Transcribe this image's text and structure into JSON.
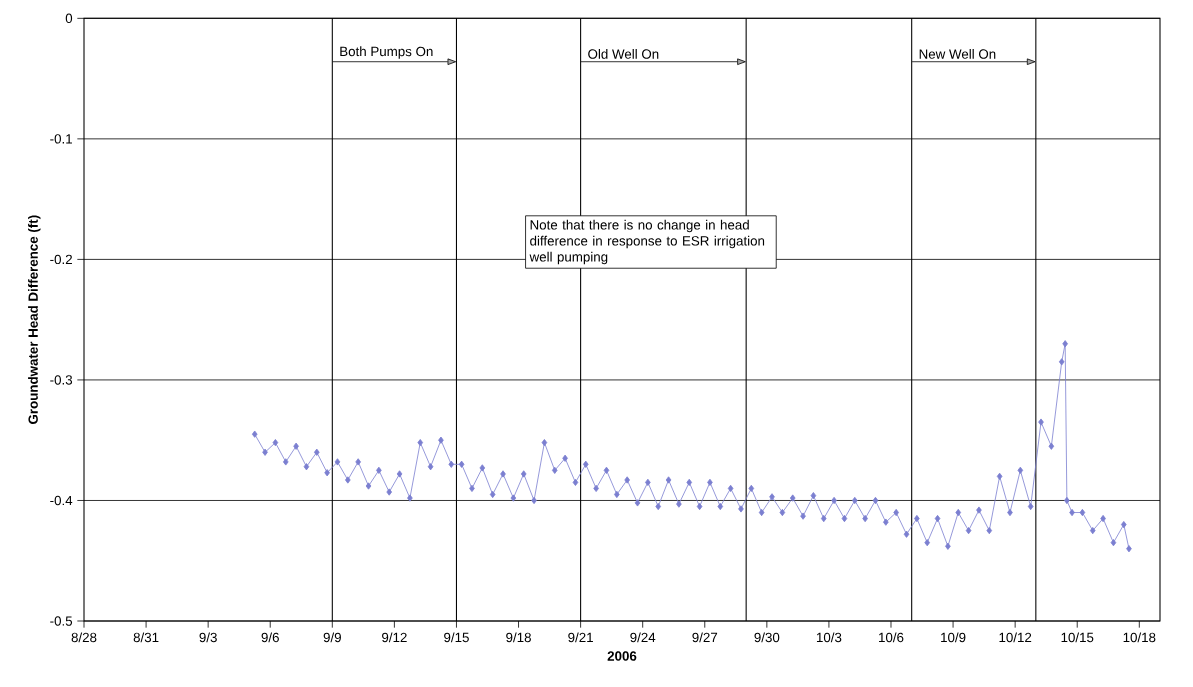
{
  "chart_data": {
    "type": "line",
    "xlabel": "2006",
    "ylabel": "Groundwater Head Difference (ft)",
    "xlim": [
      "2006-08-28",
      "2006-10-19"
    ],
    "ylim": [
      -0.5,
      0
    ],
    "xticks": [
      {
        "value": "2006-08-28",
        "label": "8/28"
      },
      {
        "value": "2006-08-31",
        "label": "8/31"
      },
      {
        "value": "2006-09-03",
        "label": "9/3"
      },
      {
        "value": "2006-09-06",
        "label": "9/6"
      },
      {
        "value": "2006-09-09",
        "label": "9/9"
      },
      {
        "value": "2006-09-12",
        "label": "9/12"
      },
      {
        "value": "2006-09-15",
        "label": "9/15"
      },
      {
        "value": "2006-09-18",
        "label": "9/18"
      },
      {
        "value": "2006-09-21",
        "label": "9/21"
      },
      {
        "value": "2006-09-24",
        "label": "9/24"
      },
      {
        "value": "2006-09-27",
        "label": "9/27"
      },
      {
        "value": "2006-09-30",
        "label": "9/30"
      },
      {
        "value": "2006-10-03",
        "label": "10/3"
      },
      {
        "value": "2006-10-06",
        "label": "10/6"
      },
      {
        "value": "2006-10-09",
        "label": "10/9"
      },
      {
        "value": "2006-10-12",
        "label": "10/12"
      },
      {
        "value": "2006-10-15",
        "label": "10/15"
      },
      {
        "value": "2006-10-18",
        "label": "10/18"
      }
    ],
    "yticks": [
      -0.5,
      -0.4,
      -0.3,
      -0.2,
      -0.1,
      0
    ],
    "grid": "y",
    "marker": "diamond",
    "line_style": "solid",
    "x": [
      "2006-09-05T06:00",
      "2006-09-05T18:00",
      "2006-09-06T06:00",
      "2006-09-06T18:00",
      "2006-09-07T06:00",
      "2006-09-07T18:00",
      "2006-09-08T06:00",
      "2006-09-08T18:00",
      "2006-09-09T06:00",
      "2006-09-09T18:00",
      "2006-09-10T06:00",
      "2006-09-10T18:00",
      "2006-09-11T06:00",
      "2006-09-11T18:00",
      "2006-09-12T06:00",
      "2006-09-12T18:00",
      "2006-09-13T06:00",
      "2006-09-13T18:00",
      "2006-09-14T06:00",
      "2006-09-14T18:00",
      "2006-09-15T06:00",
      "2006-09-15T18:00",
      "2006-09-16T06:00",
      "2006-09-16T18:00",
      "2006-09-17T06:00",
      "2006-09-17T18:00",
      "2006-09-18T06:00",
      "2006-09-18T18:00",
      "2006-09-19T06:00",
      "2006-09-19T18:00",
      "2006-09-20T06:00",
      "2006-09-20T18:00",
      "2006-09-21T06:00",
      "2006-09-21T18:00",
      "2006-09-22T06:00",
      "2006-09-22T18:00",
      "2006-09-23T06:00",
      "2006-09-23T18:00",
      "2006-09-24T06:00",
      "2006-09-24T18:00",
      "2006-09-25T06:00",
      "2006-09-25T18:00",
      "2006-09-26T06:00",
      "2006-09-26T18:00",
      "2006-09-27T06:00",
      "2006-09-27T18:00",
      "2006-09-28T06:00",
      "2006-09-28T18:00",
      "2006-09-29T06:00",
      "2006-09-29T18:00",
      "2006-09-30T06:00",
      "2006-09-30T18:00",
      "2006-10-01T06:00",
      "2006-10-01T18:00",
      "2006-10-02T06:00",
      "2006-10-02T18:00",
      "2006-10-03T06:00",
      "2006-10-03T18:00",
      "2006-10-04T06:00",
      "2006-10-04T18:00",
      "2006-10-05T06:00",
      "2006-10-05T18:00",
      "2006-10-06T06:00",
      "2006-10-06T18:00",
      "2006-10-07T06:00",
      "2006-10-07T18:00",
      "2006-10-08T06:00",
      "2006-10-08T18:00",
      "2006-10-09T06:00",
      "2006-10-09T18:00",
      "2006-10-10T06:00",
      "2006-10-10T18:00",
      "2006-10-11T06:00",
      "2006-10-11T18:00",
      "2006-10-12T06:00",
      "2006-10-12T18:00",
      "2006-10-13T06:00",
      "2006-10-13T18:00",
      "2006-10-14T06:00",
      "2006-10-14T10:00",
      "2006-10-14T12:00",
      "2006-10-14T18:00",
      "2006-10-15T06:00",
      "2006-10-15T18:00",
      "2006-10-16T06:00",
      "2006-10-16T18:00",
      "2006-10-17T06:00",
      "2006-10-17T12:00"
    ],
    "series": [
      {
        "color": "#7b7fd0",
        "values": [
          -0.345,
          -0.36,
          -0.352,
          -0.368,
          -0.355,
          -0.372,
          -0.36,
          -0.377,
          -0.368,
          -0.383,
          -0.368,
          -0.388,
          -0.375,
          -0.393,
          -0.378,
          -0.398,
          -0.352,
          -0.372,
          -0.35,
          -0.37,
          -0.37,
          -0.39,
          -0.373,
          -0.395,
          -0.378,
          -0.398,
          -0.378,
          -0.4,
          -0.352,
          -0.375,
          -0.365,
          -0.385,
          -0.37,
          -0.39,
          -0.375,
          -0.395,
          -0.383,
          -0.402,
          -0.385,
          -0.405,
          -0.383,
          -0.403,
          -0.385,
          -0.405,
          -0.385,
          -0.405,
          -0.39,
          -0.407,
          -0.39,
          -0.41,
          -0.397,
          -0.41,
          -0.398,
          -0.413,
          -0.396,
          -0.415,
          -0.4,
          -0.415,
          -0.4,
          -0.415,
          -0.4,
          -0.418,
          -0.41,
          -0.428,
          -0.415,
          -0.435,
          -0.415,
          -0.438,
          -0.41,
          -0.425,
          -0.408,
          -0.425,
          -0.38,
          -0.41,
          -0.375,
          -0.405,
          -0.335,
          -0.355,
          -0.285,
          -0.27,
          -0.4,
          -0.41,
          -0.41,
          -0.425,
          -0.415,
          -0.435,
          -0.42,
          -0.44
        ]
      }
    ],
    "ref_lines": [
      {
        "axis": "x",
        "value": "2006-09-09",
        "color": "#000000"
      },
      {
        "axis": "x",
        "value": "2006-09-15",
        "color": "#000000"
      },
      {
        "axis": "x",
        "value": "2006-09-21",
        "color": "#000000"
      },
      {
        "axis": "x",
        "value": "2006-09-29",
        "color": "#000000"
      },
      {
        "axis": "x",
        "value": "2006-10-07",
        "color": "#000000"
      },
      {
        "axis": "x",
        "value": "2006-10-13",
        "color": "#000000"
      }
    ],
    "annotations": [
      "Both Pumps On",
      "Old Well On",
      "New Well On",
      "Note that there is no change in head difference in response to ESR irrigation well pumping"
    ]
  }
}
